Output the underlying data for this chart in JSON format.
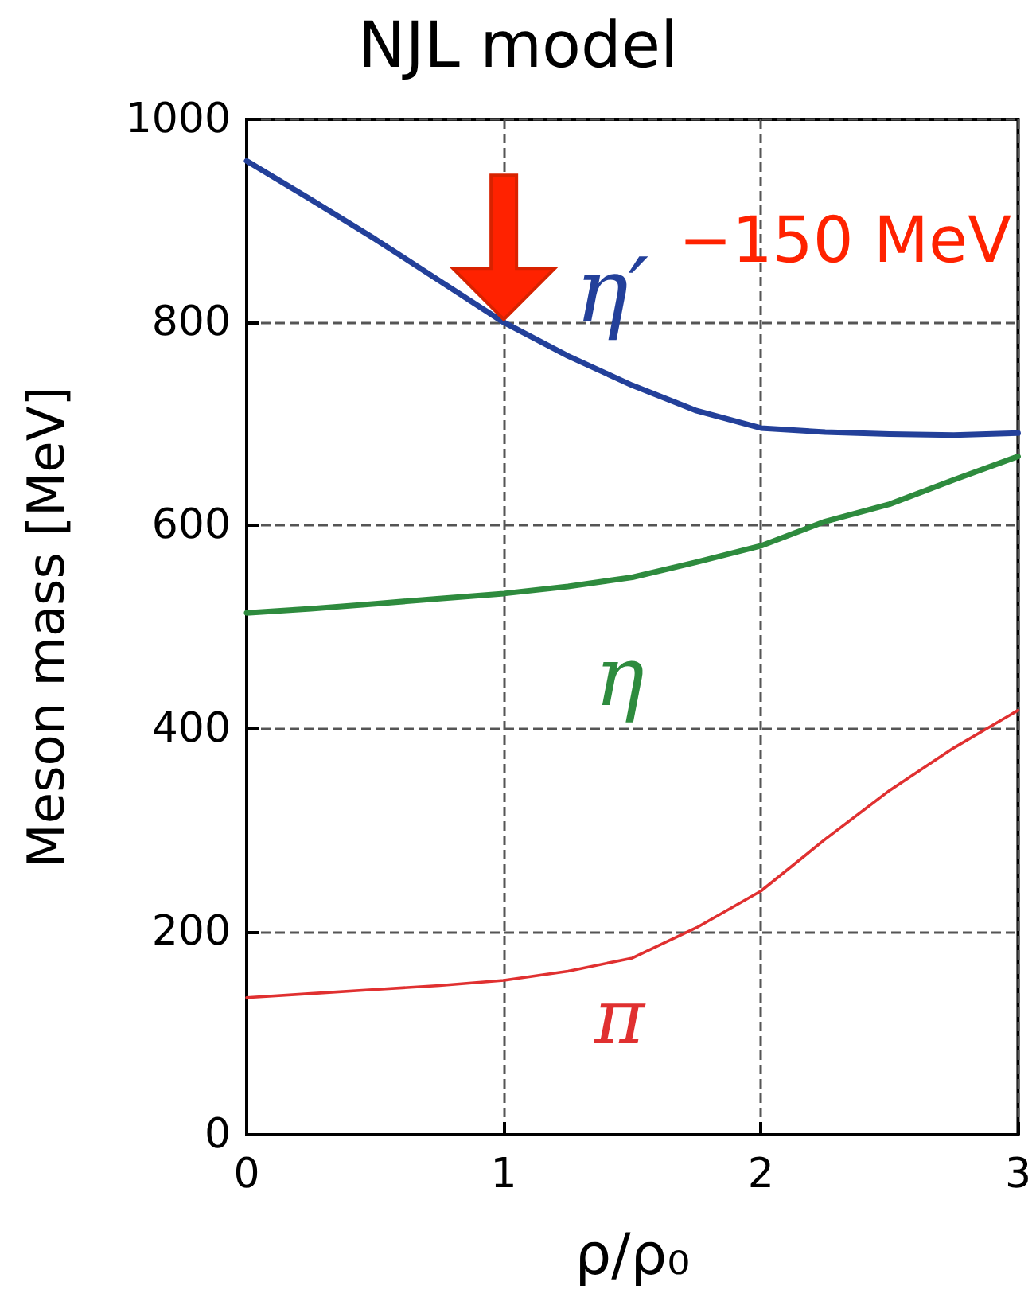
{
  "chart_data": {
    "type": "line",
    "title": "NJL model",
    "xlabel": "ρ/ρ₀",
    "ylabel": "Meson mass [MeV]",
    "x": [
      0,
      0.25,
      0.5,
      0.75,
      1,
      1.25,
      1.5,
      1.75,
      2,
      2.25,
      2.5,
      2.75,
      3
    ],
    "series": [
      {
        "name": "η′",
        "color": "#23409a",
        "values": [
          959,
          921,
          882,
          841,
          800,
          767,
          738,
          713,
          696,
          692,
          690,
          689,
          691
        ]
      },
      {
        "name": "η",
        "color": "#2e8b3e",
        "values": [
          514,
          518,
          523,
          528,
          533,
          540,
          549,
          564,
          580,
          604,
          621,
          645,
          668
        ]
      },
      {
        "name": "π",
        "color": "#e03030",
        "values": [
          135,
          139,
          143,
          147,
          152,
          161,
          174,
          204,
          240,
          291,
          339,
          381,
          418
        ]
      }
    ],
    "annotations": [
      "−150 MeV"
    ],
    "xlim": [
      0,
      3
    ],
    "xticks": [
      0,
      1,
      2,
      3
    ],
    "ylim": [
      0,
      1000
    ],
    "yticks": [
      0,
      200,
      400,
      600,
      800,
      1000
    ],
    "grid": true,
    "legend": false,
    "marker": "none",
    "line_style": "solid"
  }
}
